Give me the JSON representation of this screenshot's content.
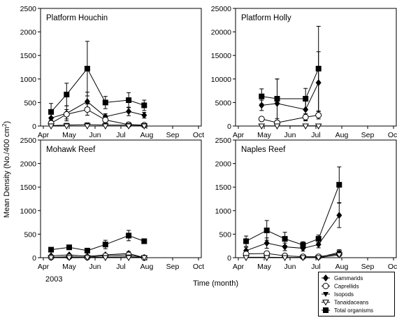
{
  "figure": {
    "ylabel_prefix": "Mean Density (No./400 cm",
    "ylabel_sup": "2",
    "ylabel_suffix": ")",
    "xlabel": "Time (month)",
    "year": "2003"
  },
  "legend": {
    "items": [
      {
        "label": "Gammarids",
        "marker": "diamond"
      },
      {
        "label": "Caprellids",
        "marker": "circle-open"
      },
      {
        "label": "Isopods",
        "marker": "triangle-down-filled"
      },
      {
        "label": "Tanaidaceans",
        "marker": "triangle-down-open"
      },
      {
        "label": "Total organisms",
        "marker": "square"
      }
    ]
  },
  "chart_data": [
    {
      "type": "line",
      "title": "Platform Houchin",
      "x_ticks": [
        "Apr",
        "May",
        "Jun",
        "Jul",
        "Aug",
        "Sep",
        "Oct"
      ],
      "ylim": [
        0,
        2500
      ],
      "y_ticks": [
        0,
        500,
        1000,
        1500,
        2000,
        2500
      ],
      "x": [
        0.3,
        0.9,
        1.7,
        2.4,
        3.3,
        3.9
      ],
      "series": [
        {
          "marker": "square",
          "values": [
            300,
            670,
            1220,
            500,
            550,
            440
          ],
          "err": [
            180,
            240,
            580,
            130,
            160,
            110
          ]
        },
        {
          "marker": "diamond",
          "values": [
            170,
            270,
            520,
            200,
            310,
            230
          ],
          "err": [
            100,
            160,
            200,
            60,
            90,
            60
          ]
        },
        {
          "marker": "circle-open",
          "values": [
            60,
            250,
            350,
            130,
            30,
            20
          ],
          "err": [
            40,
            100,
            120,
            50,
            20,
            15
          ]
        },
        {
          "marker": "triangle-down-filled",
          "values": [
            10,
            20,
            30,
            20,
            20,
            15
          ],
          "err": [
            5,
            10,
            10,
            10,
            10,
            5
          ]
        },
        {
          "marker": "triangle-down-open",
          "values": [
            0,
            0,
            0,
            0,
            0,
            0
          ],
          "err": [
            0,
            0,
            0,
            0,
            0,
            0
          ]
        }
      ]
    },
    {
      "type": "line",
      "title": "Platform Holly",
      "x_ticks": [
        "Apr",
        "May",
        "Jun",
        "Jul",
        "Aug",
        "Sep",
        "Oct"
      ],
      "ylim": [
        0,
        25000
      ],
      "y_ticks": [
        0,
        5000,
        10000,
        15000,
        20000,
        25000
      ],
      "x": [
        0.9,
        1.5,
        2.6,
        3.1
      ],
      "series": [
        {
          "marker": "square",
          "values": [
            6300,
            5800,
            5800,
            12200
          ],
          "err": [
            1600,
            4200,
            2200,
            9000
          ]
        },
        {
          "marker": "diamond",
          "values": [
            4400,
            4800,
            3500,
            9200
          ],
          "err": [
            1100,
            5200,
            2400,
            6600
          ]
        },
        {
          "marker": "circle-open",
          "values": [
            1500,
            700,
            1900,
            2300
          ],
          "err": [
            300,
            500,
            700,
            800
          ]
        },
        {
          "marker": "triangle-down-filled",
          "values": [
            50,
            30,
            40,
            60
          ],
          "err": [
            0,
            0,
            0,
            0
          ]
        },
        {
          "marker": "triangle-down-open",
          "values": [
            0,
            0,
            0,
            0
          ],
          "err": [
            0,
            0,
            0,
            0
          ]
        }
      ]
    },
    {
      "type": "line",
      "title": "Mohawk Reef",
      "x_ticks": [
        "Apr",
        "May",
        "Jun",
        "Jul",
        "Aug",
        "Sep",
        "Oct"
      ],
      "ylim": [
        0,
        2500
      ],
      "y_ticks": [
        0,
        500,
        1000,
        1500,
        2000,
        2500
      ],
      "x": [
        0.3,
        1.0,
        1.7,
        2.4,
        3.3,
        3.9
      ],
      "series": [
        {
          "marker": "square",
          "values": [
            170,
            220,
            150,
            280,
            470,
            350
          ],
          "err": [
            0,
            40,
            30,
            90,
            110,
            50
          ]
        },
        {
          "marker": "diamond",
          "values": [
            40,
            60,
            30,
            60,
            90,
            0
          ],
          "err": [
            10,
            20,
            15,
            20,
            40,
            0
          ]
        },
        {
          "marker": "circle-open",
          "values": [
            10,
            20,
            10,
            40,
            60,
            0
          ],
          "err": [
            5,
            10,
            5,
            20,
            30,
            0
          ]
        },
        {
          "marker": "triangle-down-filled",
          "values": [
            5,
            10,
            5,
            10,
            20,
            0
          ],
          "err": [
            0,
            0,
            0,
            0,
            0,
            0
          ]
        },
        {
          "marker": "triangle-down-open",
          "values": [
            0,
            0,
            0,
            0,
            0,
            0
          ],
          "err": [
            0,
            0,
            0,
            0,
            0,
            0
          ]
        }
      ]
    },
    {
      "type": "line",
      "title": "Naples Reef",
      "x_ticks": [
        "Apr",
        "May",
        "Jun",
        "Jul",
        "Aug",
        "Sep",
        "Oct"
      ],
      "ylim": [
        0,
        2500
      ],
      "y_ticks": [
        0,
        500,
        1000,
        1500,
        2000,
        2500
      ],
      "x": [
        0.3,
        1.1,
        1.8,
        2.5,
        3.1,
        3.9
      ],
      "series": [
        {
          "marker": "square",
          "values": [
            350,
            580,
            400,
            270,
            400,
            1550
          ],
          "err": [
            110,
            210,
            140,
            70,
            80,
            380
          ]
        },
        {
          "marker": "diamond",
          "values": [
            150,
            310,
            230,
            200,
            280,
            900
          ],
          "err": [
            70,
            110,
            80,
            60,
            70,
            260
          ]
        },
        {
          "marker": "circle-open",
          "values": [
            80,
            90,
            40,
            20,
            20,
            80
          ],
          "err": [
            40,
            40,
            20,
            10,
            10,
            40
          ]
        },
        {
          "marker": "triangle-down-filled",
          "values": [
            10,
            10,
            5,
            5,
            5,
            110
          ],
          "err": [
            0,
            0,
            0,
            0,
            0,
            60
          ]
        },
        {
          "marker": "triangle-down-open",
          "values": [
            0,
            0,
            0,
            0,
            0,
            60
          ],
          "err": [
            0,
            0,
            0,
            0,
            0,
            30
          ]
        }
      ]
    }
  ]
}
